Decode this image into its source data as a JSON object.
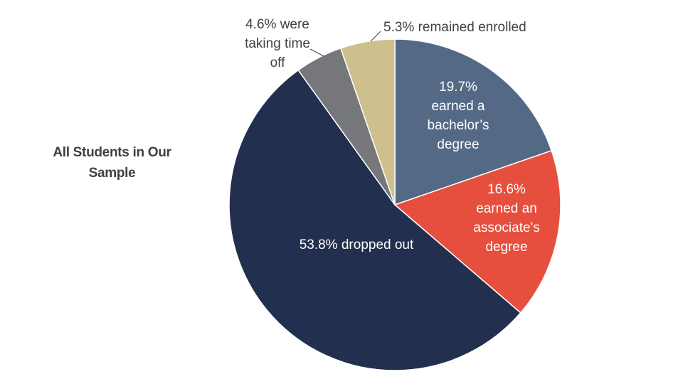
{
  "chart_data": {
    "type": "pie",
    "title": "All Students in Our Sample",
    "slices": [
      {
        "label_lines": [
          "19.7%",
          "earned a",
          "bachelor’s",
          "degree"
        ],
        "value": 19.7,
        "color": "#536985",
        "text_color": "#ffffff"
      },
      {
        "label_lines": [
          "16.6%",
          "earned an",
          "associate's",
          "degree"
        ],
        "value": 16.6,
        "color": "#e64f3d",
        "text_color": "#ffffff"
      },
      {
        "label_lines": [
          "53.8% dropped out"
        ],
        "value": 53.8,
        "color": "#232f4e",
        "text_color": "#ffffff"
      },
      {
        "label_lines": [
          "4.6% were",
          "taking time",
          "off"
        ],
        "value": 4.6,
        "color": "#76777b",
        "text_color": "#404040"
      },
      {
        "label_lines": [
          "5.3% remained enrolled"
        ],
        "value": 5.3,
        "color": "#cdc08c",
        "text_color": "#404040"
      }
    ],
    "legend": "none"
  }
}
